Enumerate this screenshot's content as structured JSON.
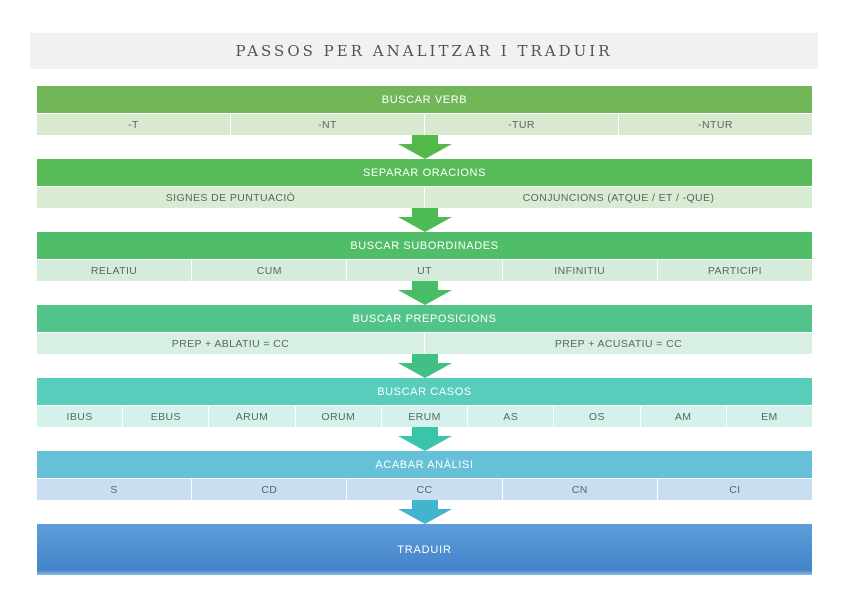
{
  "title": "PASSOS PER ANALITZAR I TRADUIR",
  "steps": [
    {
      "header": "BUSCAR VERB",
      "header_color": "#72b757",
      "sub_color": "#d9e9d0",
      "arrow_color": "#54b84a",
      "cells": [
        "-T",
        "-NT",
        "-TUR",
        "-NTUR"
      ]
    },
    {
      "header": "SEPARAR ORACIONS",
      "header_color": "#57bb58",
      "sub_color": "#d8ecd4",
      "arrow_color": "#4cbb52",
      "cells": [
        "SIGNES DE PUNTUACIÓ",
        "CONJUNCIONS (ATQUE / ET / -QUE)"
      ]
    },
    {
      "header": "BUSCAR SUBORDINADES",
      "header_color": "#50bd69",
      "sub_color": "#d6ecda",
      "arrow_color": "#46bd66",
      "cells": [
        "RELATIU",
        "CUM",
        "UT",
        "INFINITIU",
        "PARTICIPI"
      ]
    },
    {
      "header": "BUSCAR PREPOSICIONS",
      "header_color": "#53c489",
      "sub_color": "#d7f0e3",
      "arrow_color": "#40c083",
      "cells": [
        "PREP + ABLATIU = CC",
        "PREP + ACUSATIU = CC"
      ]
    },
    {
      "header": "BUSCAR CASOS",
      "header_color": "#58cdbb",
      "sub_color": "#d5f1ec",
      "arrow_color": "#3ac4a8",
      "cells": [
        "IBUS",
        "EBUS",
        "ARUM",
        "ORUM",
        "ERUM",
        "AS",
        "OS",
        "AM",
        "EM"
      ]
    },
    {
      "header": "ACABAR ANÀLISI",
      "header_color": "#66c1d8",
      "sub_color": "#c9def0",
      "arrow_color": "#44b3ce",
      "cells": [
        "S",
        "CD",
        "CC",
        "CN",
        "CI"
      ]
    }
  ],
  "final": {
    "label": "TRADUIR",
    "color_top": "#5f9eda",
    "color_bottom": "#4484c9",
    "edge_highlight": "#8fb9e4"
  }
}
